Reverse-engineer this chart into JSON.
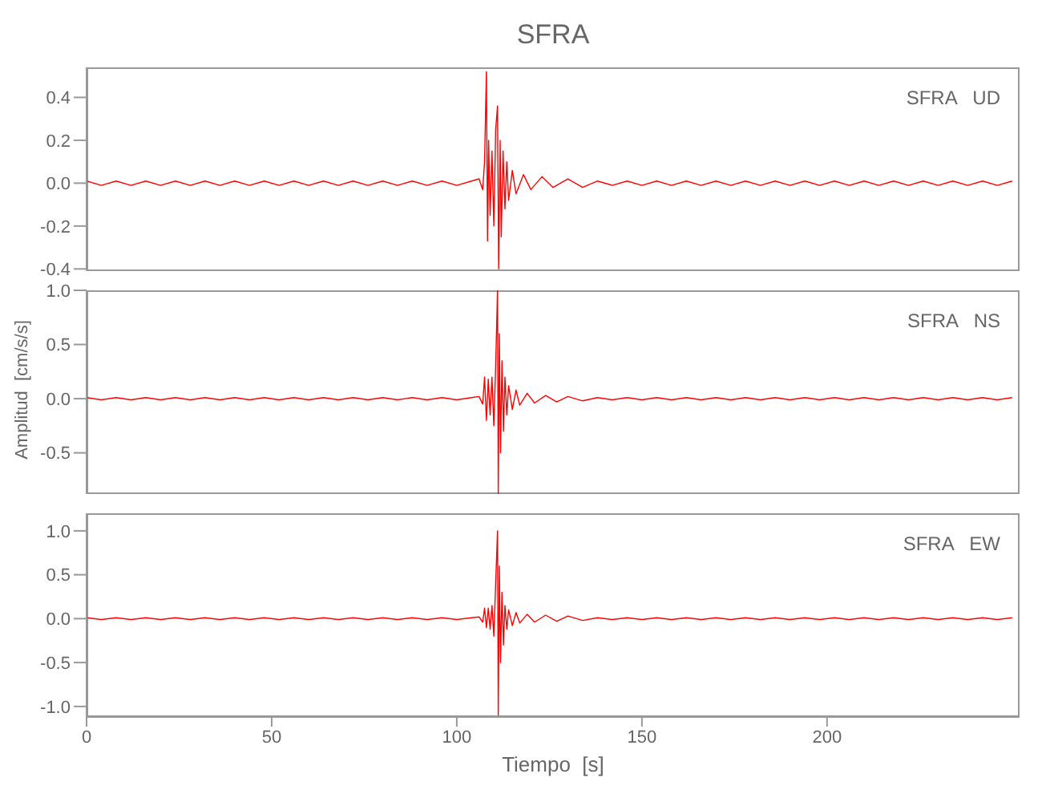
{
  "chart_data": [
    {
      "type": "line",
      "title": "SFRA",
      "annotations": [
        "SFRA   UD"
      ],
      "tick_labels": "y",
      "xlim": [
        0,
        252
      ],
      "xticks": [
        0,
        50,
        100,
        150,
        200
      ],
      "ylim": [
        -0.41,
        0.54
      ],
      "yticks": [
        {
          "value": -0.4,
          "label": "-0.4"
        },
        {
          "value": -0.2,
          "label": "-0.2"
        },
        {
          "value": 0,
          "label": "0.0"
        },
        {
          "value": 0.2,
          "label": "0.2"
        },
        {
          "value": 0.4,
          "label": "0.4"
        }
      ],
      "grid": false,
      "legend": false,
      "marker": "none",
      "series": [
        {
          "color": "#ff0000",
          "x": [
            0,
            4,
            8,
            12,
            16,
            20,
            24,
            28,
            32,
            36,
            40,
            44,
            48,
            52,
            56,
            60,
            64,
            68,
            72,
            76,
            80,
            84,
            88,
            92,
            96,
            100,
            104,
            106,
            107,
            107.5,
            108,
            108.3,
            108.6,
            109,
            109.5,
            110,
            110.5,
            111,
            111.3,
            111.7,
            112,
            112.5,
            113,
            113.5,
            114,
            115,
            116,
            118,
            120,
            123,
            126,
            130,
            134,
            138,
            142,
            146,
            150,
            154,
            158,
            162,
            166,
            170,
            174,
            178,
            182,
            186,
            190,
            194,
            198,
            202,
            206,
            210,
            214,
            218,
            222,
            226,
            230,
            234,
            238,
            242,
            246,
            250
          ],
          "values": [
            0.01,
            -0.01,
            0.01,
            -0.01,
            0.01,
            -0.01,
            0.01,
            -0.01,
            0.01,
            -0.01,
            0.01,
            -0.01,
            0.01,
            -0.01,
            0.01,
            -0.01,
            0.01,
            -0.01,
            0.01,
            -0.01,
            0.01,
            -0.01,
            0.01,
            -0.01,
            0.01,
            -0.01,
            0.01,
            0.02,
            -0.03,
            0.1,
            0.52,
            -0.27,
            0.2,
            -0.15,
            0.15,
            -0.2,
            0.25,
            0.36,
            -0.4,
            0.2,
            -0.25,
            0.15,
            -0.12,
            0.1,
            -0.08,
            0.06,
            -0.05,
            0.04,
            -0.03,
            0.03,
            -0.02,
            0.02,
            -0.02,
            0.01,
            -0.01,
            0.01,
            -0.01,
            0.01,
            -0.01,
            0.01,
            -0.01,
            0.01,
            -0.01,
            0.01,
            -0.01,
            0.01,
            -0.01,
            0.01,
            -0.01,
            0.01,
            -0.01,
            0.01,
            -0.01,
            0.01,
            -0.01,
            0.01,
            -0.01,
            0.01,
            -0.01,
            0.01,
            -0.01,
            0.01
          ]
        }
      ]
    },
    {
      "type": "line",
      "ylabel": "Amplitud  [cm/s/s]",
      "annotations": [
        "SFRA   NS"
      ],
      "tick_labels": "y",
      "xlim": [
        0,
        252
      ],
      "xticks": [
        0,
        50,
        100,
        150,
        200
      ],
      "ylim": [
        -0.88,
        1.0
      ],
      "yticks": [
        {
          "value": -0.5,
          "label": "-0.5"
        },
        {
          "value": 0,
          "label": "0.0"
        },
        {
          "value": 0.5,
          "label": "0.5"
        },
        {
          "value": 1.0,
          "label": "1.0"
        }
      ],
      "grid": false,
      "legend": false,
      "marker": "none",
      "series": [
        {
          "color": "#ff0000",
          "x": [
            0,
            4,
            8,
            12,
            16,
            20,
            24,
            28,
            32,
            36,
            40,
            44,
            48,
            52,
            56,
            60,
            64,
            68,
            72,
            76,
            80,
            84,
            88,
            92,
            96,
            100,
            104,
            106,
            107,
            107.5,
            108,
            108.5,
            109,
            109.5,
            110,
            110.5,
            111,
            111.2,
            111.5,
            111.8,
            112.2,
            112.6,
            113,
            113.5,
            114,
            115,
            116,
            117,
            119,
            121,
            124,
            127,
            130,
            134,
            138,
            142,
            146,
            150,
            154,
            158,
            162,
            166,
            170,
            174,
            178,
            182,
            186,
            190,
            194,
            198,
            202,
            206,
            210,
            214,
            218,
            222,
            226,
            230,
            234,
            238,
            242,
            246,
            250
          ],
          "values": [
            0.01,
            -0.01,
            0.01,
            -0.01,
            0.01,
            -0.01,
            0.01,
            -0.01,
            0.01,
            -0.01,
            0.01,
            -0.01,
            0.01,
            -0.01,
            0.01,
            -0.01,
            0.01,
            -0.01,
            0.01,
            -0.01,
            0.01,
            -0.01,
            0.01,
            -0.01,
            0.01,
            -0.01,
            0.01,
            0.02,
            -0.05,
            0.2,
            -0.2,
            0.18,
            -0.15,
            0.2,
            -0.25,
            0.3,
            1.0,
            -0.88,
            0.6,
            -0.5,
            0.35,
            -0.3,
            0.2,
            -0.15,
            0.12,
            -0.1,
            0.08,
            -0.06,
            0.05,
            -0.04,
            0.03,
            -0.03,
            0.02,
            -0.02,
            0.01,
            -0.01,
            0.01,
            -0.01,
            0.01,
            -0.01,
            0.01,
            -0.01,
            0.01,
            -0.01,
            0.01,
            -0.01,
            0.01,
            -0.01,
            0.01,
            -0.01,
            0.01,
            -0.01,
            0.01,
            -0.01,
            0.01,
            -0.01,
            0.01,
            -0.01,
            0.01,
            -0.01,
            0.01,
            -0.01,
            0.01
          ]
        }
      ]
    },
    {
      "type": "line",
      "xlabel": "Tiempo  [s]",
      "annotations": [
        "SFRA   EW"
      ],
      "xlim": [
        0,
        252
      ],
      "xticks": [
        0,
        50,
        100,
        150,
        200
      ],
      "ylim": [
        -1.12,
        1.2
      ],
      "yticks": [
        {
          "value": -1.0,
          "label": "-1.0"
        },
        {
          "value": -0.5,
          "label": "-0.5"
        },
        {
          "value": 0,
          "label": "0.0"
        },
        {
          "value": 0.5,
          "label": "0.5"
        },
        {
          "value": 1.0,
          "label": "1.0"
        }
      ],
      "grid": false,
      "legend": false,
      "marker": "none",
      "series": [
        {
          "color": "#ff0000",
          "x": [
            0,
            4,
            8,
            12,
            16,
            20,
            24,
            28,
            32,
            36,
            40,
            44,
            48,
            52,
            56,
            60,
            64,
            68,
            72,
            76,
            80,
            84,
            88,
            92,
            96,
            100,
            104,
            106,
            107,
            107.5,
            108,
            108.5,
            109,
            109.5,
            110,
            110.5,
            111,
            111.2,
            111.5,
            111.8,
            112.2,
            112.6,
            113,
            113.5,
            114,
            115,
            116,
            117,
            119,
            121,
            124,
            127,
            130,
            134,
            138,
            142,
            146,
            150,
            154,
            158,
            162,
            166,
            170,
            174,
            178,
            182,
            186,
            190,
            194,
            198,
            202,
            206,
            210,
            214,
            218,
            222,
            226,
            230,
            234,
            238,
            242,
            246,
            250
          ],
          "values": [
            0.01,
            -0.01,
            0.01,
            -0.01,
            0.01,
            -0.01,
            0.01,
            -0.01,
            0.01,
            -0.01,
            0.01,
            -0.01,
            0.01,
            -0.01,
            0.01,
            -0.01,
            0.01,
            -0.01,
            0.01,
            -0.01,
            0.01,
            -0.01,
            0.01,
            -0.01,
            0.01,
            -0.01,
            0.01,
            0.02,
            -0.04,
            0.12,
            -0.1,
            0.12,
            -0.12,
            0.15,
            -0.2,
            0.4,
            1.0,
            -1.1,
            0.6,
            -0.5,
            0.3,
            -0.3,
            0.15,
            -0.12,
            0.1,
            -0.08,
            0.07,
            -0.05,
            0.05,
            -0.04,
            0.04,
            -0.03,
            0.03,
            -0.02,
            0.01,
            -0.01,
            0.01,
            -0.01,
            0.01,
            -0.01,
            0.01,
            -0.01,
            0.01,
            -0.01,
            0.01,
            -0.01,
            0.01,
            -0.01,
            0.01,
            -0.01,
            0.01,
            -0.01,
            0.01,
            -0.01,
            0.01,
            -0.01,
            0.01,
            -0.01,
            0.01,
            -0.01,
            0.01,
            -0.01,
            0.01
          ]
        }
      ]
    }
  ]
}
